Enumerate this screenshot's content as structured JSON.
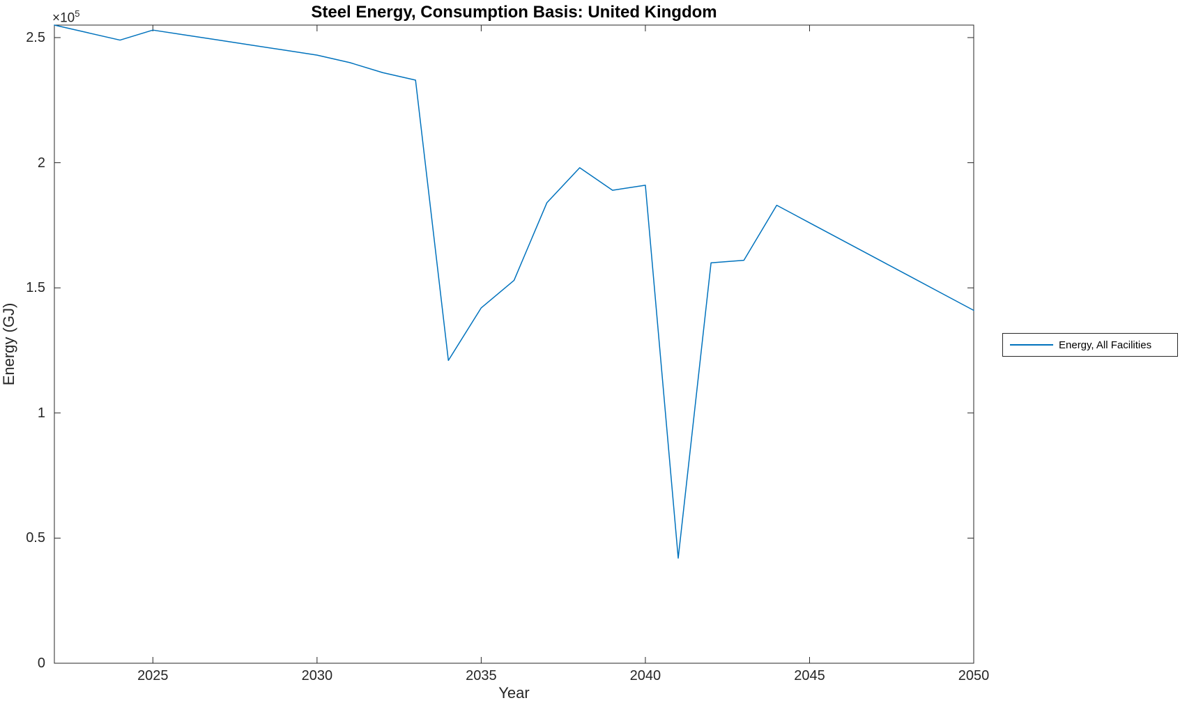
{
  "chart_data": {
    "type": "line",
    "title": "Steel Energy, Consumption Basis: United Kingdom",
    "xlabel": "Year",
    "ylabel": "Energy (GJ)",
    "y_axis_multiplier_base": "×10",
    "y_axis_multiplier_exponent": "5",
    "x": [
      2022,
      2023,
      2024,
      2025,
      2026,
      2027,
      2028,
      2029,
      2030,
      2031,
      2032,
      2033,
      2034,
      2035,
      2036,
      2037,
      2038,
      2039,
      2040,
      2041,
      2042,
      2043,
      2044,
      2045,
      2046,
      2047,
      2048,
      2049,
      2050
    ],
    "series": [
      {
        "name": "Energy, All Facilities",
        "color": "#0072BD",
        "values": [
          255000,
          252000,
          249000,
          253000,
          251000,
          249000,
          247000,
          245000,
          243000,
          240000,
          236000,
          233000,
          121000,
          142000,
          153000,
          184000,
          198000,
          189000,
          191000,
          42000,
          160000,
          161000,
          183000,
          176000,
          169000,
          162000,
          155000,
          148000,
          141000
        ]
      }
    ],
    "xlim": [
      2022,
      2050
    ],
    "ylim": [
      0,
      255000
    ],
    "x_ticks": [
      2025,
      2030,
      2035,
      2040,
      2045,
      2050
    ],
    "x_tick_labels": [
      "2025",
      "2030",
      "2035",
      "2040",
      "2045",
      "2050"
    ],
    "y_ticks": [
      0,
      50000,
      100000,
      150000,
      200000,
      250000
    ],
    "y_tick_labels": [
      "0",
      "0.5",
      "1",
      "1.5",
      "2",
      "2.5"
    ],
    "grid": false,
    "box": true,
    "tick_direction": "in",
    "axis_color": "#262626",
    "background_color": "#ffffff",
    "legend": {
      "position": "outside-right",
      "entries": [
        "Energy, All Facilities"
      ]
    }
  }
}
